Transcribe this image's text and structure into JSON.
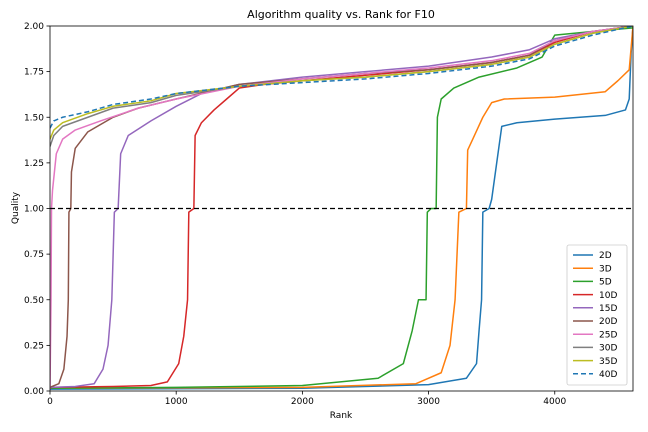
{
  "chart_data": {
    "type": "line",
    "title": "Algorithm quality vs. Rank for F10",
    "xlabel": "Rank",
    "ylabel": "Quality",
    "xlim": [
      0,
      4620
    ],
    "ylim": [
      0,
      2.0
    ],
    "xticks": [
      0,
      1000,
      2000,
      3000,
      4000
    ],
    "xtick_labels": [
      "0",
      "1000",
      "2000",
      "3000",
      "4000"
    ],
    "yticks": [
      0,
      0.25,
      0.5,
      0.75,
      1.0,
      1.25,
      1.5,
      1.75,
      2.0
    ],
    "ytick_labels": [
      "0.00",
      "0.25",
      "0.50",
      "0.75",
      "1.00",
      "1.25",
      "1.50",
      "1.75",
      "2.00"
    ],
    "grid": false,
    "legend_position": "lower-right",
    "reference_line": {
      "y": 1.0,
      "style": "dashed",
      "color": "#000000"
    },
    "series": [
      {
        "name": "2D",
        "color": "#1f77b4",
        "dash": "solid",
        "points": [
          [
            0,
            0.01
          ],
          [
            2000,
            0.015
          ],
          [
            3000,
            0.035
          ],
          [
            3300,
            0.07
          ],
          [
            3380,
            0.15
          ],
          [
            3400,
            0.33
          ],
          [
            3420,
            0.5
          ],
          [
            3430,
            0.98
          ],
          [
            3480,
            1.0
          ],
          [
            3500,
            1.05
          ],
          [
            3540,
            1.25
          ],
          [
            3580,
            1.45
          ],
          [
            3700,
            1.47
          ],
          [
            4000,
            1.49
          ],
          [
            4400,
            1.51
          ],
          [
            4560,
            1.54
          ],
          [
            4590,
            1.6
          ],
          [
            4605,
            1.85
          ],
          [
            4620,
            2.0
          ]
        ]
      },
      {
        "name": "3D",
        "color": "#ff7f0e",
        "dash": "solid",
        "points": [
          [
            0,
            0.015
          ],
          [
            2000,
            0.02
          ],
          [
            2900,
            0.04
          ],
          [
            3100,
            0.1
          ],
          [
            3170,
            0.25
          ],
          [
            3210,
            0.5
          ],
          [
            3240,
            0.98
          ],
          [
            3300,
            1.0
          ],
          [
            3310,
            1.32
          ],
          [
            3350,
            1.38
          ],
          [
            3430,
            1.5
          ],
          [
            3500,
            1.58
          ],
          [
            3600,
            1.6
          ],
          [
            4000,
            1.61
          ],
          [
            4400,
            1.64
          ],
          [
            4500,
            1.7
          ],
          [
            4590,
            1.76
          ],
          [
            4620,
            2.0
          ]
        ]
      },
      {
        "name": "5D",
        "color": "#2ca02c",
        "dash": "solid",
        "points": [
          [
            0,
            0.015
          ],
          [
            1000,
            0.02
          ],
          [
            2000,
            0.03
          ],
          [
            2600,
            0.07
          ],
          [
            2800,
            0.15
          ],
          [
            2870,
            0.33
          ],
          [
            2920,
            0.5
          ],
          [
            2980,
            0.5
          ],
          [
            2990,
            0.98
          ],
          [
            3020,
            1.0
          ],
          [
            3060,
            1.0
          ],
          [
            3070,
            1.5
          ],
          [
            3100,
            1.6
          ],
          [
            3200,
            1.66
          ],
          [
            3400,
            1.72
          ],
          [
            3700,
            1.77
          ],
          [
            3900,
            1.83
          ],
          [
            4000,
            1.95
          ],
          [
            4300,
            1.97
          ],
          [
            4620,
            1.99
          ]
        ]
      },
      {
        "name": "10D",
        "color": "#d62728",
        "dash": "solid",
        "points": [
          [
            0,
            0.02
          ],
          [
            500,
            0.025
          ],
          [
            800,
            0.03
          ],
          [
            930,
            0.05
          ],
          [
            1020,
            0.15
          ],
          [
            1060,
            0.3
          ],
          [
            1090,
            0.5
          ],
          [
            1100,
            0.98
          ],
          [
            1140,
            1.0
          ],
          [
            1150,
            1.4
          ],
          [
            1200,
            1.47
          ],
          [
            1300,
            1.54
          ],
          [
            1400,
            1.6
          ],
          [
            1500,
            1.66
          ],
          [
            1700,
            1.68
          ],
          [
            2000,
            1.7
          ],
          [
            2500,
            1.73
          ],
          [
            3000,
            1.76
          ],
          [
            3500,
            1.8
          ],
          [
            3800,
            1.84
          ],
          [
            4000,
            1.91
          ],
          [
            4300,
            1.97
          ],
          [
            4620,
            2.0
          ]
        ]
      },
      {
        "name": "15D",
        "color": "#9467bd",
        "dash": "solid",
        "points": [
          [
            0,
            0.02
          ],
          [
            200,
            0.025
          ],
          [
            350,
            0.04
          ],
          [
            420,
            0.12
          ],
          [
            460,
            0.25
          ],
          [
            490,
            0.5
          ],
          [
            510,
            0.98
          ],
          [
            540,
            1.0
          ],
          [
            560,
            1.3
          ],
          [
            620,
            1.4
          ],
          [
            800,
            1.48
          ],
          [
            1000,
            1.56
          ],
          [
            1200,
            1.63
          ],
          [
            1500,
            1.68
          ],
          [
            2000,
            1.72
          ],
          [
            2500,
            1.75
          ],
          [
            3000,
            1.78
          ],
          [
            3500,
            1.83
          ],
          [
            3800,
            1.87
          ],
          [
            4000,
            1.93
          ],
          [
            4300,
            1.97
          ],
          [
            4620,
            2.0
          ]
        ]
      },
      {
        "name": "20D",
        "color": "#8c564b",
        "dash": "solid",
        "points": [
          [
            0,
            0.02
          ],
          [
            70,
            0.04
          ],
          [
            110,
            0.12
          ],
          [
            135,
            0.3
          ],
          [
            145,
            0.5
          ],
          [
            150,
            0.98
          ],
          [
            165,
            1.0
          ],
          [
            170,
            1.2
          ],
          [
            200,
            1.33
          ],
          [
            300,
            1.42
          ],
          [
            500,
            1.5
          ],
          [
            700,
            1.55
          ],
          [
            1000,
            1.6
          ],
          [
            1500,
            1.68
          ],
          [
            2000,
            1.71
          ],
          [
            2500,
            1.74
          ],
          [
            3000,
            1.76
          ],
          [
            3500,
            1.8
          ],
          [
            3800,
            1.84
          ],
          [
            4000,
            1.92
          ],
          [
            4300,
            1.97
          ],
          [
            4620,
            2.0
          ]
        ]
      },
      {
        "name": "25D",
        "color": "#e377c2",
        "dash": "solid",
        "points": [
          [
            0,
            0.01
          ],
          [
            8,
            0.5
          ],
          [
            12,
            1.0
          ],
          [
            20,
            1.1
          ],
          [
            50,
            1.3
          ],
          [
            100,
            1.38
          ],
          [
            200,
            1.43
          ],
          [
            400,
            1.48
          ],
          [
            700,
            1.55
          ],
          [
            1000,
            1.6
          ],
          [
            1500,
            1.67
          ],
          [
            2000,
            1.71
          ],
          [
            2500,
            1.74
          ],
          [
            3000,
            1.77
          ],
          [
            3500,
            1.81
          ],
          [
            3800,
            1.85
          ],
          [
            4000,
            1.92
          ],
          [
            4300,
            1.97
          ],
          [
            4620,
            2.0
          ]
        ]
      },
      {
        "name": "30D",
        "color": "#7f7f7f",
        "dash": "solid",
        "points": [
          [
            0,
            1.34
          ],
          [
            30,
            1.4
          ],
          [
            100,
            1.45
          ],
          [
            300,
            1.5
          ],
          [
            500,
            1.55
          ],
          [
            800,
            1.58
          ],
          [
            1000,
            1.62
          ],
          [
            1500,
            1.67
          ],
          [
            2000,
            1.7
          ],
          [
            2500,
            1.72
          ],
          [
            3000,
            1.75
          ],
          [
            3500,
            1.79
          ],
          [
            3800,
            1.83
          ],
          [
            4000,
            1.9
          ],
          [
            4300,
            1.96
          ],
          [
            4620,
            2.0
          ]
        ]
      },
      {
        "name": "35D",
        "color": "#bcbd22",
        "dash": "solid",
        "points": [
          [
            0,
            1.38
          ],
          [
            30,
            1.43
          ],
          [
            100,
            1.47
          ],
          [
            300,
            1.52
          ],
          [
            500,
            1.56
          ],
          [
            800,
            1.59
          ],
          [
            1000,
            1.63
          ],
          [
            1500,
            1.67
          ],
          [
            2000,
            1.7
          ],
          [
            2500,
            1.72
          ],
          [
            3000,
            1.75
          ],
          [
            3500,
            1.79
          ],
          [
            3800,
            1.83
          ],
          [
            4000,
            1.9
          ],
          [
            4300,
            1.96
          ],
          [
            4620,
            2.0
          ]
        ]
      },
      {
        "name": "40D",
        "color": "#1f77b4",
        "dash": "dashed",
        "points": [
          [
            0,
            1.44
          ],
          [
            30,
            1.48
          ],
          [
            100,
            1.5
          ],
          [
            300,
            1.53
          ],
          [
            500,
            1.57
          ],
          [
            800,
            1.6
          ],
          [
            1000,
            1.63
          ],
          [
            1500,
            1.67
          ],
          [
            2000,
            1.69
          ],
          [
            2500,
            1.71
          ],
          [
            3000,
            1.74
          ],
          [
            3500,
            1.78
          ],
          [
            3800,
            1.82
          ],
          [
            4000,
            1.89
          ],
          [
            4300,
            1.95
          ],
          [
            4620,
            2.0
          ]
        ]
      }
    ]
  }
}
